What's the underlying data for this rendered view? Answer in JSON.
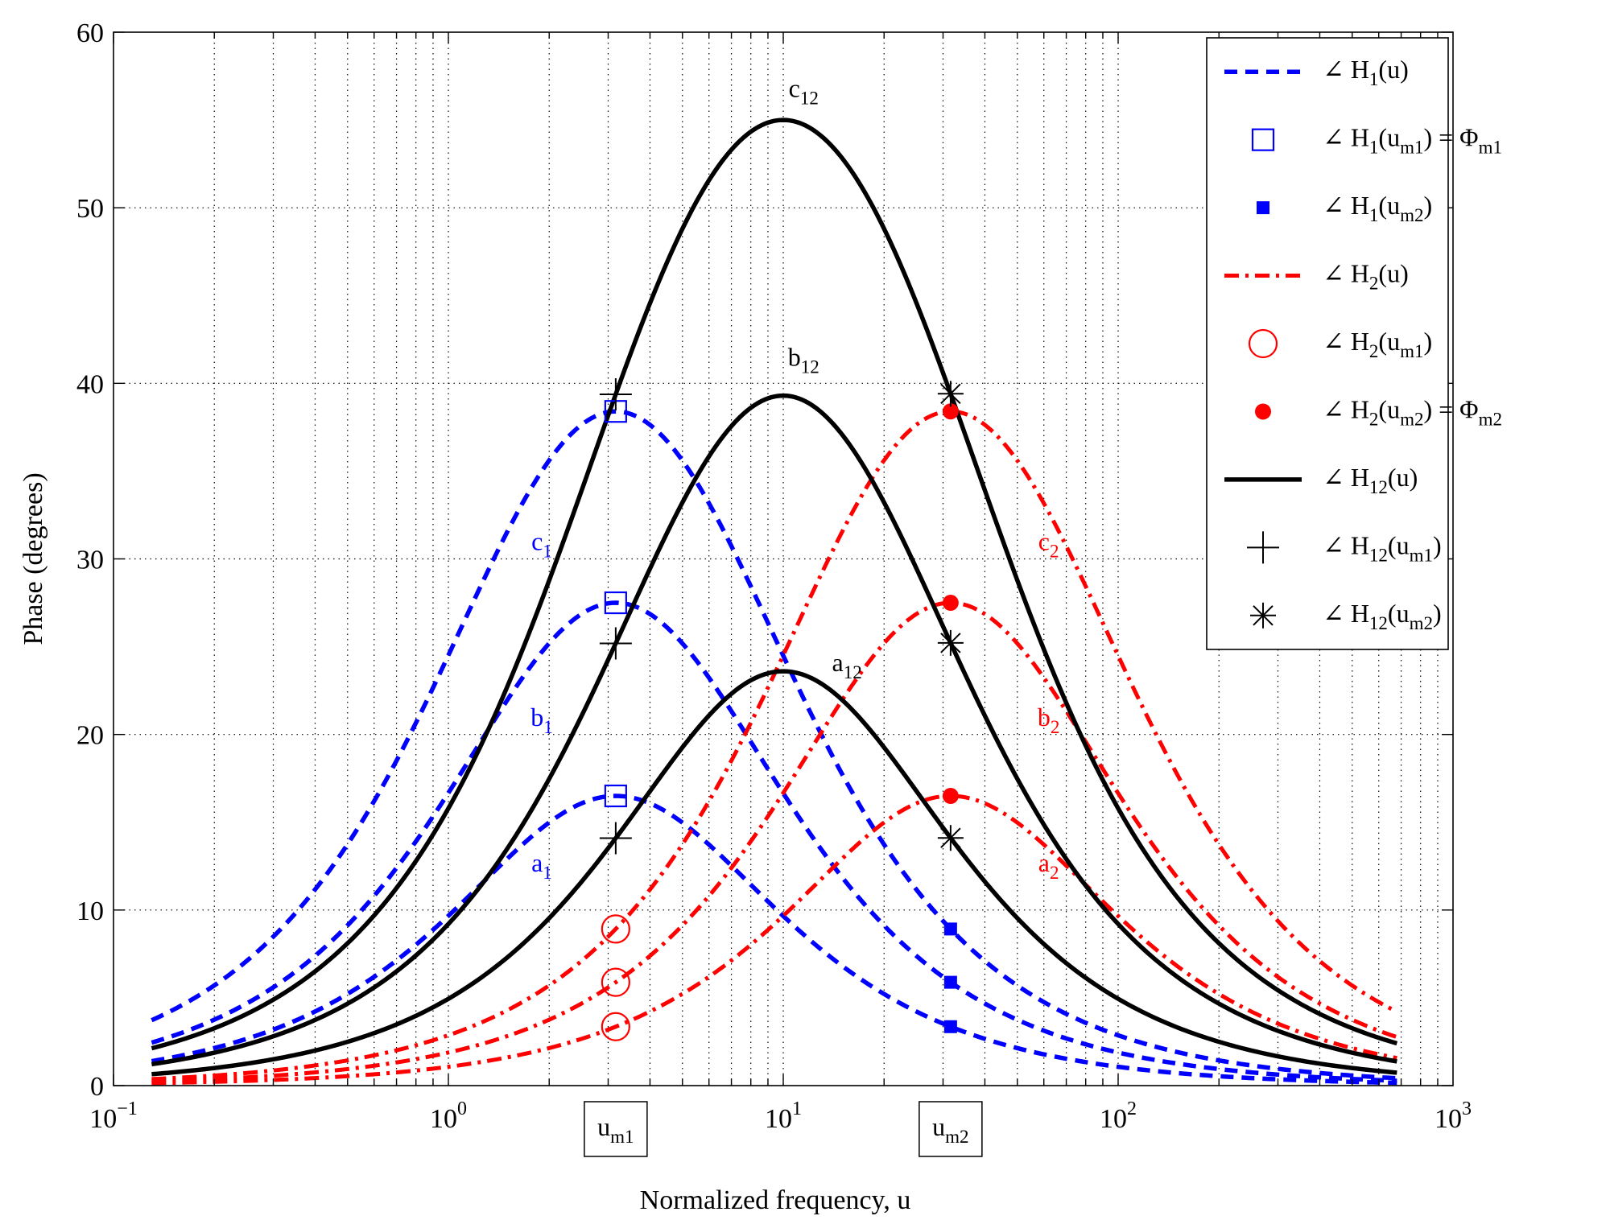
{
  "chart_data": {
    "type": "line",
    "xscale": "log",
    "xlim": [
      0.1,
      1000
    ],
    "ylim": [
      0,
      60
    ],
    "grid": true,
    "xlabel": "Normalized frequency, u",
    "ylabel": "Phase (degrees)",
    "x_ticks": [
      {
        "value": 0.1,
        "base": "10",
        "exp": "−1"
      },
      {
        "value": 1,
        "base": "10",
        "exp": "0"
      },
      {
        "value": 10,
        "base": "10",
        "exp": "1"
      },
      {
        "value": 100,
        "base": "10",
        "exp": "2"
      },
      {
        "value": 1000,
        "base": "10",
        "exp": "3"
      }
    ],
    "y_ticks": [
      0,
      10,
      20,
      30,
      40,
      50,
      60
    ],
    "x_markers": [
      {
        "label": "u",
        "sub": "m1",
        "value": 3.16
      },
      {
        "label": "u",
        "sub": "m2",
        "value": 31.6
      }
    ],
    "x_range": [
      0.13,
      680
    ],
    "colors": {
      "H1": "#0000ff",
      "H2": "#ff0000",
      "H12": "#000000"
    },
    "series": [
      {
        "name": "H1 a1",
        "group": "H1",
        "label": "a",
        "sub": "1",
        "peak": 16.5,
        "center": 3.16
      },
      {
        "name": "H1 b1",
        "group": "H1",
        "label": "b",
        "sub": "1",
        "peak": 27.5,
        "center": 3.16
      },
      {
        "name": "H1 c1",
        "group": "H1",
        "label": "c",
        "sub": "1",
        "peak": 38.4,
        "center": 3.16
      },
      {
        "name": "H2 a2",
        "group": "H2",
        "label": "a",
        "sub": "2",
        "peak": 16.5,
        "center": 31.6
      },
      {
        "name": "H2 b2",
        "group": "H2",
        "label": "b",
        "sub": "2",
        "peak": 27.5,
        "center": 31.6
      },
      {
        "name": "H2 c2",
        "group": "H2",
        "label": "c",
        "sub": "2",
        "peak": 38.4,
        "center": 31.6
      },
      {
        "name": "H12 a12",
        "group": "H12",
        "label": "a",
        "sub": "12",
        "peak": 23.6,
        "center": 10
      },
      {
        "name": "H12 b12",
        "group": "H12",
        "label": "b",
        "sub": "12",
        "peak": 39.3,
        "center": 10
      },
      {
        "name": "H12 c12",
        "group": "H12",
        "label": "c",
        "sub": "12",
        "peak": 55.0,
        "center": 10
      }
    ],
    "curve_annotations": [
      {
        "series": "H1 c1",
        "x": 1.9,
        "y": 30.5
      },
      {
        "series": "H1 b1",
        "x": 1.9,
        "y": 20.5
      },
      {
        "series": "H1 a1",
        "x": 1.9,
        "y": 12.2
      },
      {
        "series": "H2 c2",
        "x": 62,
        "y": 30.5
      },
      {
        "series": "H2 b2",
        "x": 62,
        "y": 20.5
      },
      {
        "series": "H2 a2",
        "x": 62,
        "y": 12.2
      },
      {
        "series": "H12 c12",
        "x": 11.5,
        "y": 56.3
      },
      {
        "series": "H12 b12",
        "x": 11.5,
        "y": 41.0
      },
      {
        "series": "H12 a12",
        "x": 15.5,
        "y": 23.6
      }
    ],
    "legend": {
      "position": "top-right",
      "entries": [
        {
          "name": "H",
          "sub": "1",
          "arg": "u",
          "extra": "",
          "extra_sub": "",
          "style": "dashed-line",
          "color": "#0000ff"
        },
        {
          "name": "H",
          "sub": "1",
          "arg": "u",
          "arg_sub": "m1",
          "extra": "Φ",
          "extra_sub": "m1",
          "style": "open-square",
          "color": "#0000ff"
        },
        {
          "name": "H",
          "sub": "1",
          "arg": "u",
          "arg_sub": "m2",
          "extra": "",
          "extra_sub": "",
          "style": "filled-square",
          "color": "#0000ff"
        },
        {
          "name": "H",
          "sub": "2",
          "arg": "u",
          "extra": "",
          "extra_sub": "",
          "style": "dashdot-line",
          "color": "#ff0000"
        },
        {
          "name": "H",
          "sub": "2",
          "arg": "u",
          "arg_sub": "m1",
          "extra": "",
          "extra_sub": "",
          "style": "open-circle",
          "color": "#ff0000"
        },
        {
          "name": "H",
          "sub": "2",
          "arg": "u",
          "arg_sub": "m2",
          "extra": "Φ",
          "extra_sub": "m2",
          "style": "filled-circle",
          "color": "#ff0000"
        },
        {
          "name": "H",
          "sub": "12",
          "arg": "u",
          "extra": "",
          "extra_sub": "",
          "style": "solid-line",
          "color": "#000000"
        },
        {
          "name": "H",
          "sub": "12",
          "arg": "u",
          "arg_sub": "m1",
          "extra": "",
          "extra_sub": "",
          "style": "plus",
          "color": "#000000"
        },
        {
          "name": "H",
          "sub": "12",
          "arg": "u",
          "arg_sub": "m2",
          "extra": "",
          "extra_sub": "",
          "style": "asterisk",
          "color": "#000000"
        }
      ]
    }
  }
}
